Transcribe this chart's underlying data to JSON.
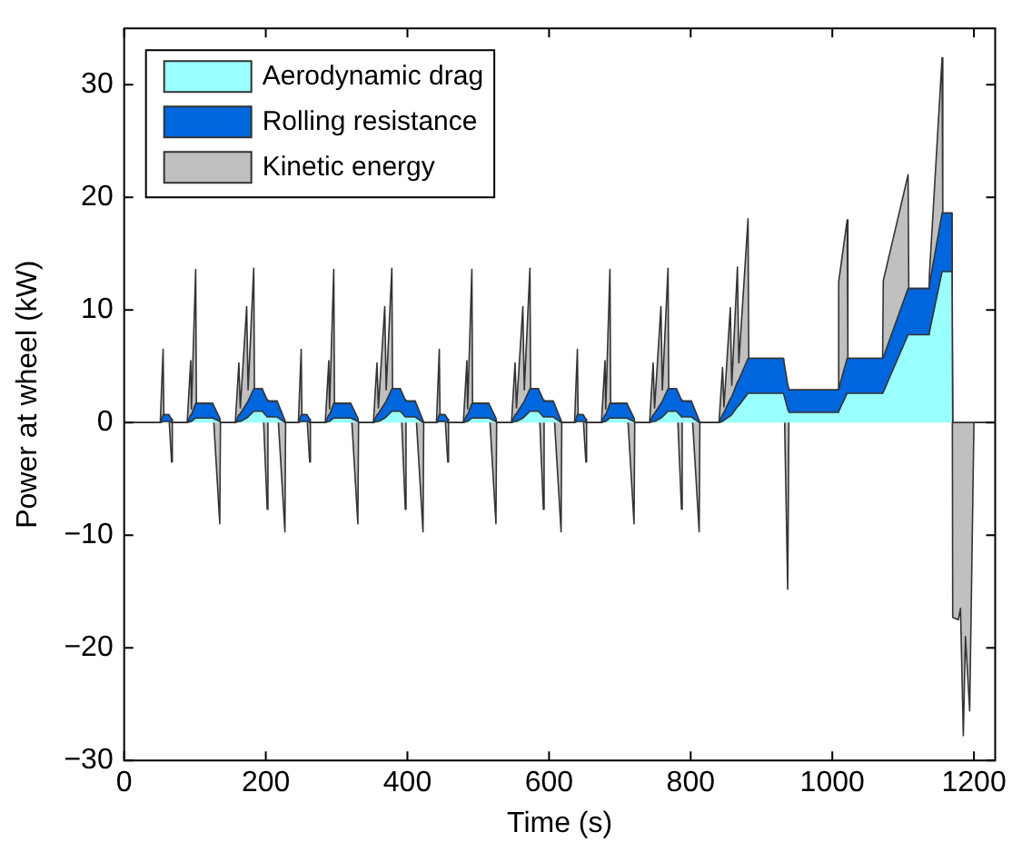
{
  "chart_data": {
    "type": "area",
    "stacked": true,
    "xlabel": "Time (s)",
    "ylabel": "Power at wheel (kW)",
    "xlim": [
      0,
      1230
    ],
    "xticks": [
      0,
      200,
      400,
      600,
      800,
      1000,
      1200
    ],
    "ylim": [
      -30,
      35
    ],
    "yticks": [
      {
        "value": -30,
        "label": "−30"
      },
      {
        "value": -20,
        "label": "−20"
      },
      {
        "value": -10,
        "label": "−10"
      },
      0,
      10,
      20,
      30
    ],
    "grid": false,
    "legend": "top left",
    "marker": "none",
    "x": [
      0,
      51,
      55,
      56,
      63,
      67,
      68,
      89,
      94,
      95,
      101,
      102,
      125,
      135,
      136,
      157,
      162,
      164,
      173,
      175,
      183,
      184,
      195,
      202,
      203,
      216,
      227,
      228,
      246,
      250,
      251,
      258,
      262,
      263,
      284,
      289,
      290,
      296,
      297,
      320,
      330,
      331,
      352,
      357,
      359,
      368,
      370,
      378,
      379,
      390,
      397,
      398,
      411,
      422,
      423,
      441,
      445,
      446,
      453,
      457,
      458,
      479,
      484,
      485,
      491,
      492,
      515,
      525,
      526,
      547,
      552,
      554,
      563,
      565,
      573,
      574,
      585,
      592,
      593,
      606,
      617,
      618,
      636,
      640,
      641,
      648,
      652,
      653,
      674,
      679,
      680,
      686,
      687,
      710,
      720,
      721,
      742,
      747,
      749,
      758,
      760,
      768,
      769,
      780,
      787,
      788,
      801,
      812,
      813,
      840,
      845,
      847,
      856,
      858,
      866,
      868,
      881,
      882,
      931,
      937,
      939,
      1008,
      1009,
      1021,
      1022,
      1071,
      1072,
      1107,
      1108,
      1136,
      1137,
      1155,
      1156,
      1169,
      1170,
      1178,
      1181,
      1185,
      1188,
      1194,
      1200,
      1230
    ],
    "series": [
      {
        "name": "Aerodynamic drag",
        "color": "#99ffff",
        "values": [
          0,
          0,
          0.1,
          0.1,
          0.1,
          0,
          0,
          0,
          0.1,
          0.1,
          0.4,
          0.4,
          0.4,
          0.1,
          0,
          0,
          0.1,
          0.1,
          0.4,
          0.5,
          1,
          1,
          1,
          0.5,
          0.5,
          0.5,
          0,
          0,
          0,
          0.1,
          0.1,
          0.1,
          0,
          0,
          0,
          0.1,
          0.1,
          0.4,
          0.4,
          0.4,
          0.1,
          0,
          0,
          0.1,
          0.1,
          0.4,
          0.5,
          1,
          1,
          1,
          0.5,
          0.5,
          0.5,
          0,
          0,
          0,
          0.1,
          0.1,
          0.1,
          0,
          0,
          0,
          0.1,
          0.1,
          0.4,
          0.4,
          0.4,
          0.1,
          0,
          0,
          0.1,
          0.1,
          0.4,
          0.5,
          1,
          1,
          1,
          0.5,
          0.5,
          0.5,
          0,
          0,
          0,
          0.1,
          0.1,
          0.1,
          0,
          0,
          0,
          0.1,
          0.1,
          0.4,
          0.4,
          0.4,
          0.1,
          0,
          0,
          0.1,
          0.1,
          0.4,
          0.5,
          1,
          1,
          1,
          0.5,
          0.5,
          0.5,
          0,
          0,
          0,
          0.1,
          0.2,
          0.6,
          0.7,
          1.4,
          1.5,
          2.6,
          2.6,
          2.6,
          1.2,
          0.9,
          0.9,
          1,
          2.6,
          2.6,
          2.6,
          2.7,
          7.8,
          7.8,
          7.8,
          8,
          13.4,
          13.4,
          13.4,
          0,
          0,
          0,
          0,
          0,
          0,
          0,
          0
        ]
      },
      {
        "name": "Rolling resistance",
        "color": "#0066dd",
        "values": [
          0,
          0,
          0.6,
          0.6,
          0.6,
          0.3,
          0,
          0,
          0.6,
          0.6,
          1.3,
          1.3,
          1.3,
          0.3,
          0,
          0,
          0.6,
          0.7,
          1.3,
          1.4,
          2,
          2,
          2,
          1.5,
          1.4,
          1.4,
          0.2,
          0,
          0,
          0.6,
          0.6,
          0.6,
          0.3,
          0,
          0,
          0.6,
          0.6,
          1.3,
          1.3,
          1.3,
          0.3,
          0,
          0,
          0.6,
          0.7,
          1.3,
          1.4,
          2,
          2,
          2,
          1.5,
          1.4,
          1.4,
          0.2,
          0,
          0,
          0.6,
          0.6,
          0.6,
          0.3,
          0,
          0,
          0.6,
          0.6,
          1.3,
          1.3,
          1.3,
          0.3,
          0,
          0,
          0.6,
          0.7,
          1.3,
          1.4,
          2,
          2,
          2,
          1.5,
          1.4,
          1.4,
          0.2,
          0,
          0,
          0.6,
          0.6,
          0.6,
          0.3,
          0,
          0,
          0.6,
          0.6,
          1.3,
          1.3,
          1.3,
          0.3,
          0,
          0,
          0.6,
          0.7,
          1.3,
          1.4,
          2,
          2,
          2,
          1.5,
          1.4,
          1.4,
          0.2,
          0,
          0,
          0.6,
          0.7,
          1.5,
          1.6,
          2.2,
          2.3,
          3.1,
          3.1,
          3.1,
          2.2,
          2,
          2,
          2,
          3.1,
          3.1,
          3.1,
          3.1,
          4.1,
          4.1,
          4.1,
          4.2,
          5.2,
          5.2,
          5.2,
          0,
          0,
          0,
          0,
          0,
          0,
          0,
          0
        ]
      },
      {
        "name": "Kinetic energy",
        "color": "#c0c0c0",
        "values": [
          0,
          0,
          5.8,
          0,
          0,
          -3.8,
          0,
          0,
          4.8,
          0.5,
          11.9,
          0,
          0,
          -9.4,
          0,
          0,
          4.6,
          0.5,
          8.6,
          1,
          10.7,
          0,
          0,
          -9.7,
          0,
          0,
          -9.9,
          0,
          0,
          5.8,
          0,
          0,
          -3.8,
          0,
          0,
          4.8,
          0.5,
          11.9,
          0,
          0,
          -9.4,
          0,
          0,
          4.6,
          0.5,
          8.6,
          1,
          10.7,
          0,
          0,
          -9.7,
          0,
          0,
          -9.9,
          0,
          0,
          5.8,
          0,
          0,
          -3.8,
          0,
          0,
          4.8,
          0.5,
          11.9,
          0,
          0,
          -9.4,
          0,
          0,
          4.6,
          0.5,
          8.6,
          1,
          10.7,
          0,
          0,
          -9.7,
          0,
          0,
          -9.9,
          0,
          0,
          5.8,
          0,
          0,
          -3.8,
          0,
          0,
          4.8,
          0.5,
          11.9,
          0,
          0,
          -9.4,
          0,
          0,
          4.6,
          0.5,
          8.6,
          1,
          10.7,
          0,
          0,
          -9.7,
          0,
          0,
          -9.9,
          0,
          0,
          4.2,
          0.5,
          8.1,
          1,
          10.2,
          1.5,
          12.4,
          0,
          0,
          -18.2,
          0,
          0,
          9.5,
          12.3,
          0,
          0,
          6.8,
          10.1,
          0,
          0,
          0.8,
          13.8,
          0,
          0,
          -17.3,
          -17.5,
          -16.5,
          -27.8,
          -19,
          -25.6,
          0,
          0
        ]
      }
    ]
  }
}
